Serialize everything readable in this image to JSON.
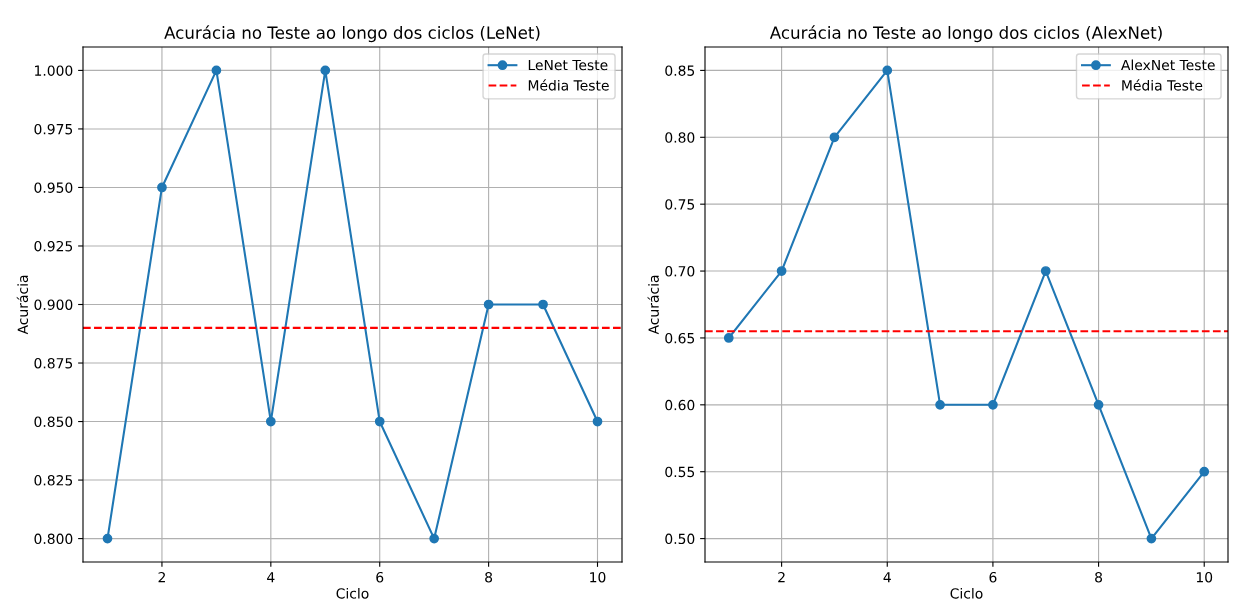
{
  "chart_data": [
    {
      "type": "line",
      "title": "Acurácia no Teste ao longo dos ciclos (LeNet)",
      "xlabel": "Ciclo",
      "ylabel": "Acurácia",
      "x": [
        1,
        2,
        3,
        4,
        5,
        6,
        7,
        8,
        9,
        10
      ],
      "series": [
        {
          "name": "LeNet Teste",
          "color": "#1f77b4",
          "values": [
            0.8,
            0.95,
            1.0,
            0.85,
            1.0,
            0.85,
            0.8,
            0.9,
            0.9,
            0.85
          ]
        }
      ],
      "ref_lines": [
        {
          "axis": "y",
          "value": 0.89,
          "label": "Média Teste",
          "color": "#ff0000",
          "line_style": "dashed"
        }
      ],
      "xlim": [
        0.55,
        10.45
      ],
      "xticks": [
        2,
        4,
        6,
        8,
        10
      ],
      "ylim": [
        0.79,
        1.01
      ],
      "yticks": [
        {
          "value": 0.8,
          "label": "0.800"
        },
        {
          "value": 0.825,
          "label": "0.825"
        },
        {
          "value": 0.85,
          "label": "0.850"
        },
        {
          "value": 0.875,
          "label": "0.875"
        },
        {
          "value": 0.9,
          "label": "0.900"
        },
        {
          "value": 0.925,
          "label": "0.925"
        },
        {
          "value": 0.95,
          "label": "0.950"
        },
        {
          "value": 0.975,
          "label": "0.975"
        },
        {
          "value": 1.0,
          "label": "1.000"
        }
      ],
      "grid": true,
      "legend": "top right",
      "marker": "circle",
      "line_style": "solid"
    },
    {
      "type": "line",
      "title": "Acurácia no Teste ao longo dos ciclos (AlexNet)",
      "xlabel": "Ciclo",
      "ylabel": "Acurácia",
      "x": [
        1,
        2,
        3,
        4,
        5,
        6,
        7,
        8,
        9,
        10
      ],
      "series": [
        {
          "name": "AlexNet Teste",
          "color": "#1f77b4",
          "values": [
            0.65,
            0.7,
            0.8,
            0.85,
            0.6,
            0.6,
            0.7,
            0.6,
            0.5,
            0.55
          ]
        }
      ],
      "ref_lines": [
        {
          "axis": "y",
          "value": 0.655,
          "label": "Média Teste",
          "color": "#ff0000",
          "line_style": "dashed"
        }
      ],
      "xlim": [
        0.55,
        10.45
      ],
      "xticks": [
        2,
        4,
        6,
        8,
        10
      ],
      "ylim": [
        0.4825,
        0.8675
      ],
      "yticks": [
        {
          "value": 0.5,
          "label": "0.50"
        },
        {
          "value": 0.55,
          "label": "0.55"
        },
        {
          "value": 0.6,
          "label": "0.60"
        },
        {
          "value": 0.65,
          "label": "0.65"
        },
        {
          "value": 0.7,
          "label": "0.70"
        },
        {
          "value": 0.75,
          "label": "0.75"
        },
        {
          "value": 0.8,
          "label": "0.80"
        },
        {
          "value": 0.85,
          "label": "0.85"
        }
      ],
      "grid": true,
      "legend": "top right",
      "marker": "circle",
      "line_style": "solid"
    }
  ]
}
